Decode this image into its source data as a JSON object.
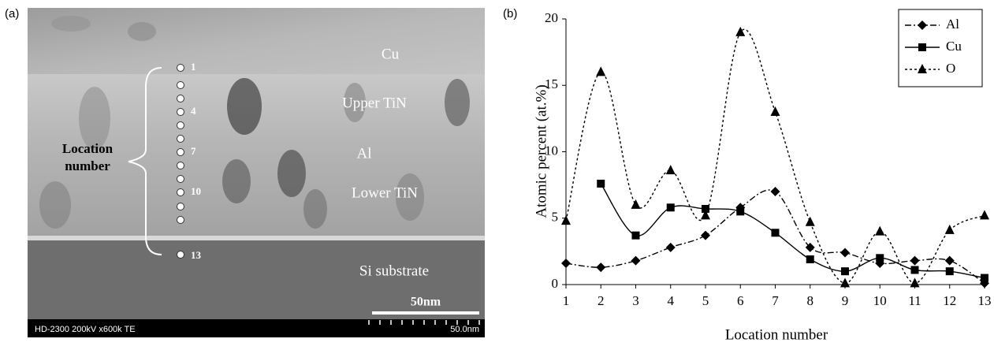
{
  "panel_labels": [
    "(a)",
    "(b)"
  ],
  "image_panel": {
    "layer_labels": [
      "Cu",
      "Upper TiN",
      "Al",
      "Lower TiN",
      "Si substrate"
    ],
    "location_label": [
      "Location",
      "number"
    ],
    "point_labels": [
      "1",
      "4",
      "7",
      "10",
      "13"
    ],
    "scale_bar": "50nm",
    "footer_left": "HD-2300  200kV  x600k  TE",
    "footer_right": "50.0nm"
  },
  "chart_data": {
    "type": "line",
    "x_label": "Location number",
    "y_label": "Atomic percent (at.%)",
    "x": [
      1,
      2,
      3,
      4,
      5,
      6,
      7,
      8,
      9,
      10,
      11,
      12,
      13
    ],
    "xlim": [
      1,
      13
    ],
    "xticks": [
      1,
      2,
      3,
      4,
      5,
      6,
      7,
      8,
      9,
      10,
      11,
      12,
      13
    ],
    "ylim": [
      0,
      20
    ],
    "yticks": [
      0,
      5,
      10,
      15,
      20
    ],
    "grid": false,
    "legend": "top-right",
    "smooth": true,
    "series": [
      {
        "name": "Al",
        "color": "#000000",
        "marker": "diamond",
        "line_style": "dashdot",
        "values": [
          1.6,
          1.3,
          1.8,
          2.8,
          3.7,
          5.8,
          7.0,
          2.8,
          2.4,
          1.6,
          1.8,
          1.8,
          0.1
        ]
      },
      {
        "name": "Cu",
        "color": "#000000",
        "marker": "square",
        "line_style": "solid",
        "values": [
          null,
          7.6,
          3.7,
          5.8,
          5.7,
          5.5,
          3.9,
          1.9,
          1.0,
          2.0,
          1.1,
          1.0,
          0.5
        ]
      },
      {
        "name": "O",
        "color": "#000000",
        "marker": "triangle",
        "line_style": "dotted",
        "values": [
          4.8,
          16.0,
          6.0,
          8.6,
          5.2,
          19.0,
          13.0,
          4.7,
          0.1,
          4.0,
          0.1,
          4.1,
          5.2
        ]
      }
    ]
  }
}
